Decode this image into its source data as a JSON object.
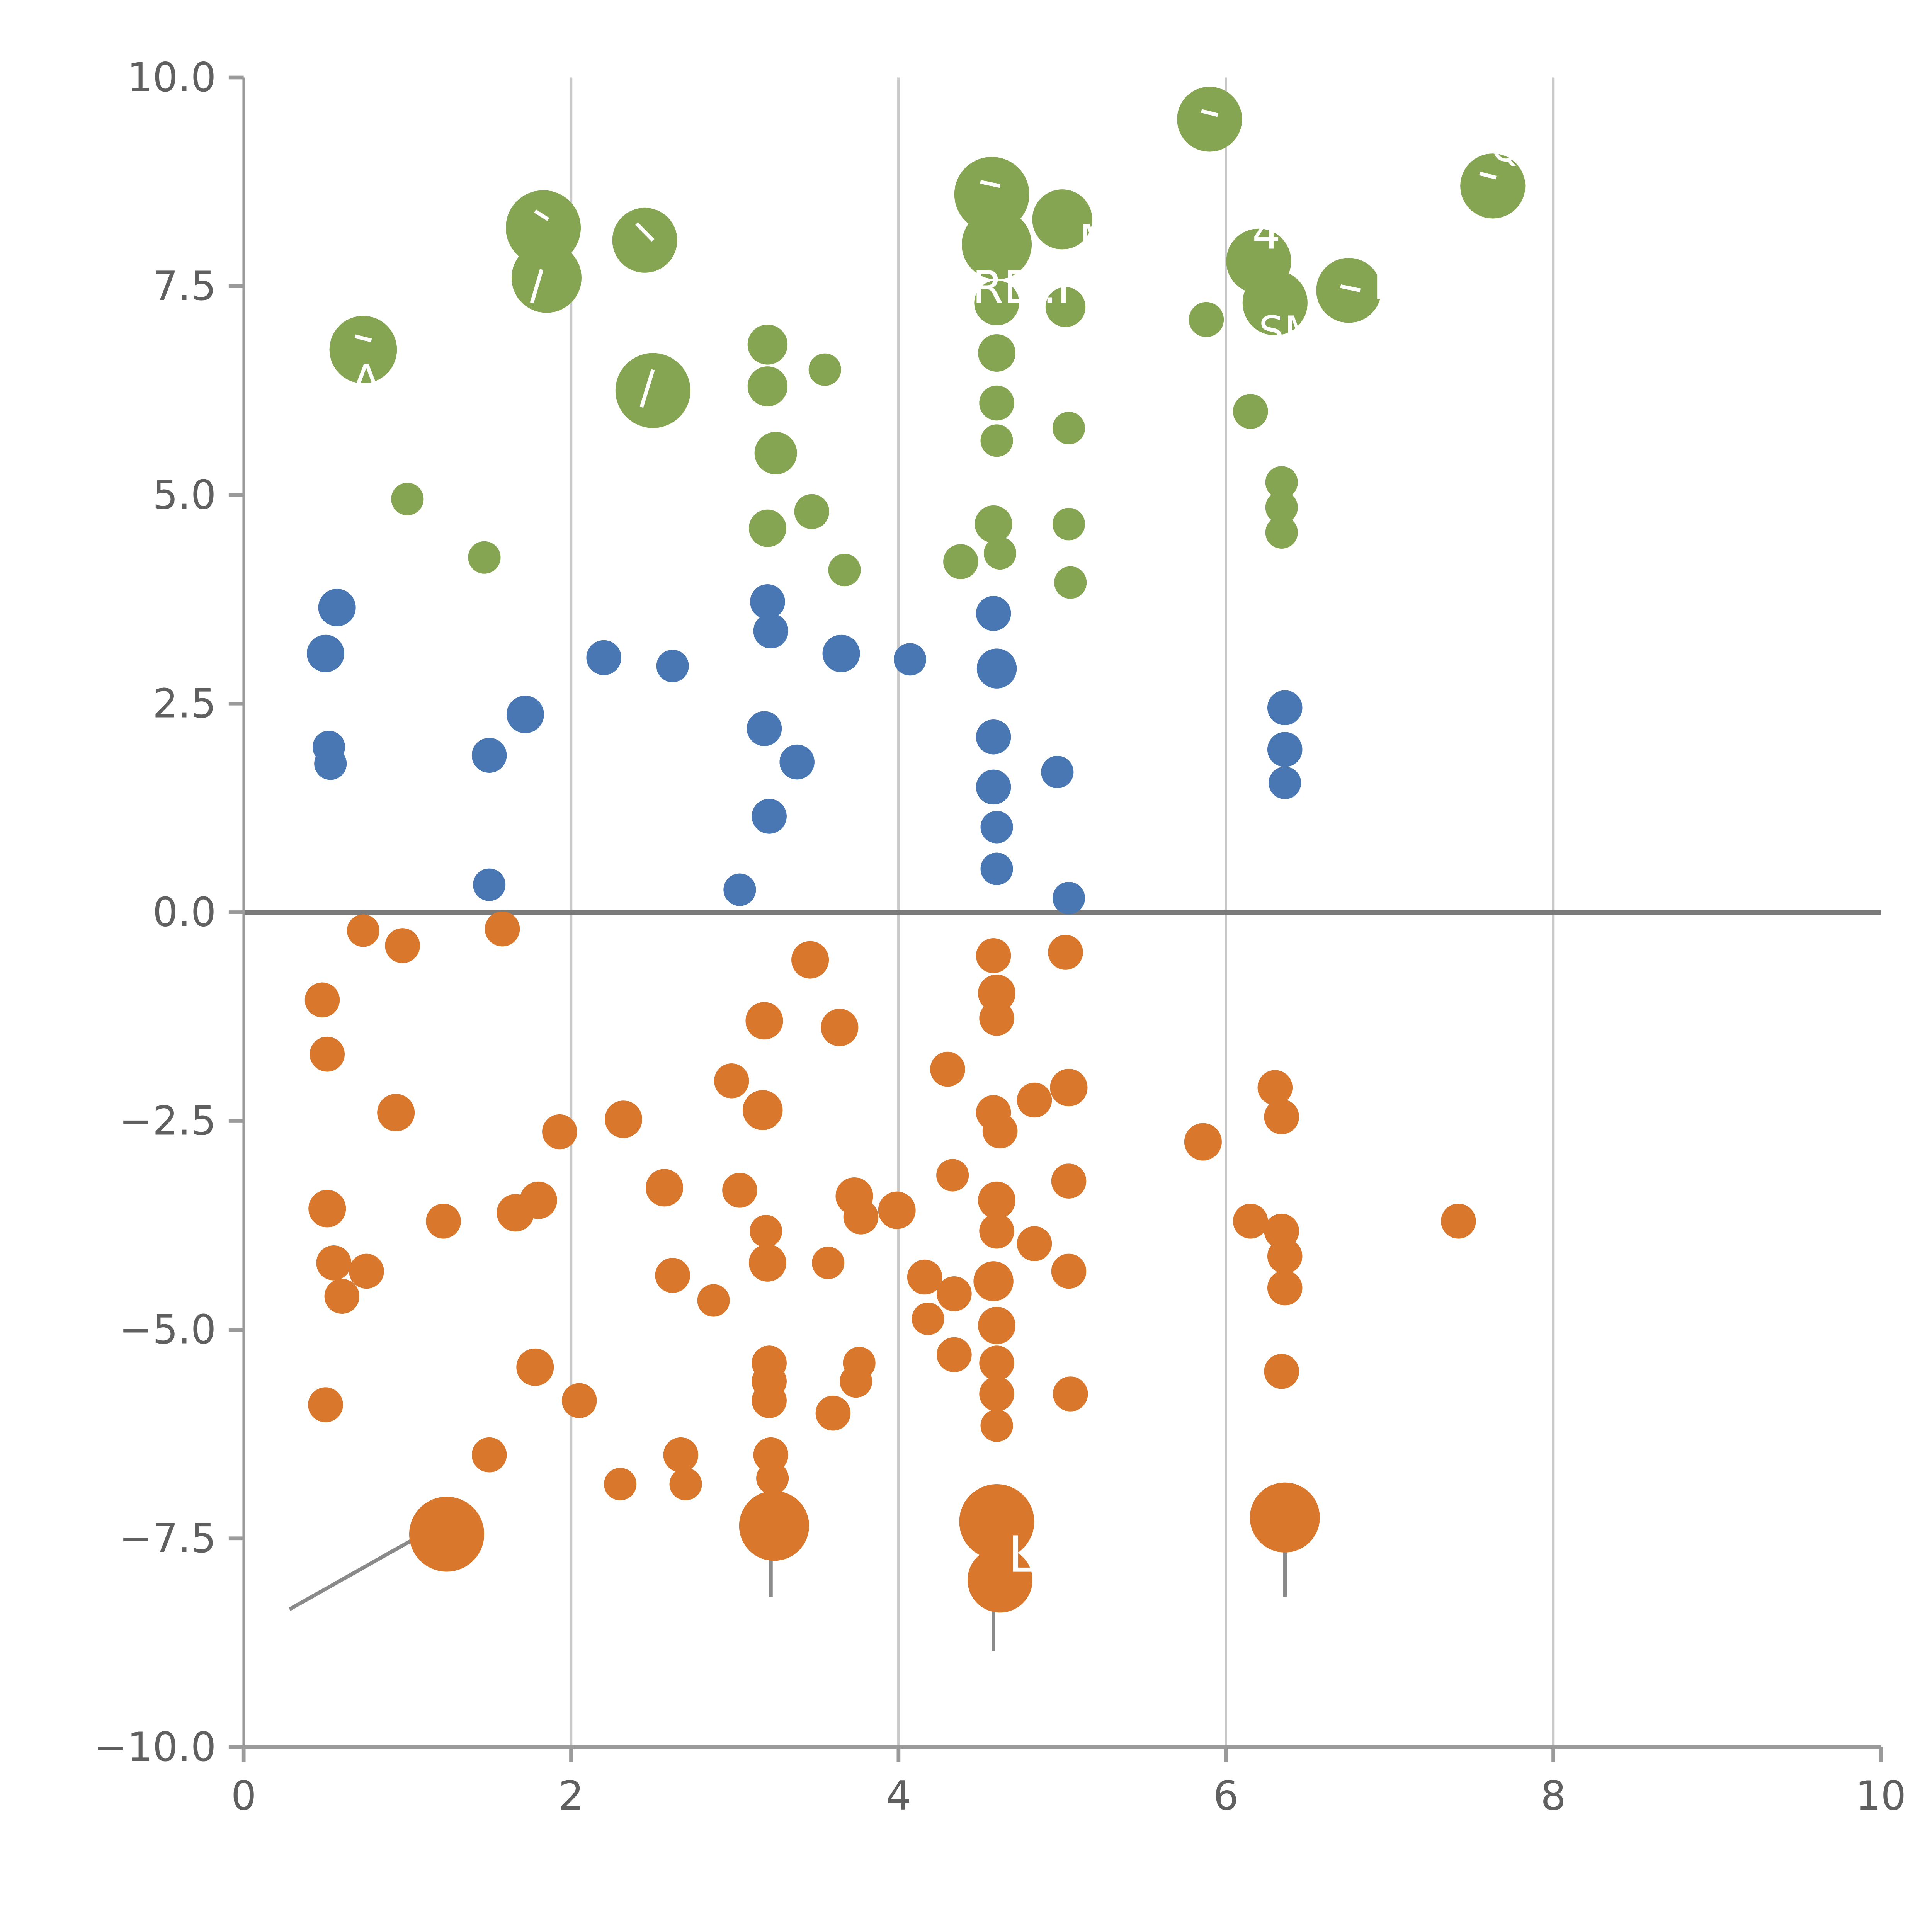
{
  "chart_data": {
    "type": "scatter",
    "title": "",
    "xlabel": "",
    "ylabel": "",
    "xlim": [
      0,
      10
    ],
    "ylim": [
      -10,
      10
    ],
    "xtick_values": [
      0,
      2,
      4,
      6,
      8,
      10
    ],
    "xtick_labels": [
      "0",
      "2",
      "4",
      "6",
      "8",
      "10"
    ],
    "ytick_values": [
      -10,
      -7.5,
      -5,
      -2.5,
      0,
      2.5,
      5,
      7.5,
      10
    ],
    "ytick_labels": [
      "−10.0",
      "−7.5",
      "−5.0",
      "−2.5",
      "0.0",
      "2.5",
      "5.0",
      "7.5",
      "10.0"
    ],
    "grid_x": [
      2,
      4,
      6,
      8
    ],
    "zero_line_y": 0,
    "grid_on": true,
    "legend": "none",
    "colors": {
      "green": "#85a553",
      "blue": "#4877b4",
      "orange": "#d9782d",
      "grid": "#c9c9c9",
      "zero_line": "#7a7a7a",
      "axis": "#9a9a9a",
      "tick_label": "#606060",
      "leader": "#8a8a8a",
      "annotation": "#ffffff"
    },
    "series": [
      {
        "name": "group-green",
        "color_key": "green",
        "points": [
          [
            0.73,
            6.74,
            27
          ],
          [
            1.0,
            4.95,
            13
          ],
          [
            1.47,
            4.25,
            13
          ],
          [
            1.83,
            8.2,
            30
          ],
          [
            1.85,
            7.6,
            28
          ],
          [
            2.45,
            8.05,
            26
          ],
          [
            2.5,
            6.25,
            30
          ],
          [
            3.2,
            6.8,
            16
          ],
          [
            3.2,
            6.3,
            16
          ],
          [
            3.25,
            5.5,
            17
          ],
          [
            3.2,
            4.6,
            15
          ],
          [
            3.47,
            4.8,
            14
          ],
          [
            3.55,
            6.5,
            13
          ],
          [
            3.67,
            4.1,
            13
          ],
          [
            4.38,
            4.2,
            14
          ],
          [
            4.57,
            8.6,
            30
          ],
          [
            4.6,
            8.0,
            28
          ],
          [
            4.6,
            7.3,
            18
          ],
          [
            4.6,
            6.7,
            15
          ],
          [
            4.6,
            6.1,
            14
          ],
          [
            4.6,
            5.65,
            13
          ],
          [
            4.58,
            4.65,
            15
          ],
          [
            4.62,
            4.3,
            13
          ],
          [
            5.0,
            8.3,
            24
          ],
          [
            5.02,
            7.25,
            16
          ],
          [
            5.04,
            5.8,
            13
          ],
          [
            5.04,
            4.65,
            13
          ],
          [
            5.05,
            3.95,
            13
          ],
          [
            5.9,
            9.5,
            26
          ],
          [
            5.88,
            7.1,
            14
          ],
          [
            6.2,
            7.8,
            26
          ],
          [
            6.3,
            7.3,
            26
          ],
          [
            6.15,
            6.0,
            14
          ],
          [
            6.34,
            5.15,
            13
          ],
          [
            6.34,
            4.85,
            13
          ],
          [
            6.34,
            4.55,
            13
          ],
          [
            6.75,
            7.45,
            26
          ],
          [
            7.63,
            8.7,
            26
          ]
        ]
      },
      {
        "name": "group-blue",
        "color_key": "blue",
        "points": [
          [
            0.57,
            3.65,
            15
          ],
          [
            0.5,
            3.1,
            15
          ],
          [
            0.52,
            1.98,
            13
          ],
          [
            0.53,
            1.78,
            13
          ],
          [
            1.5,
            1.88,
            14
          ],
          [
            1.72,
            2.37,
            15
          ],
          [
            1.5,
            0.33,
            13
          ],
          [
            2.2,
            3.05,
            14
          ],
          [
            2.62,
            2.95,
            13
          ],
          [
            3.03,
            0.27,
            13
          ],
          [
            3.18,
            2.2,
            14
          ],
          [
            3.2,
            3.72,
            14
          ],
          [
            3.22,
            3.37,
            14
          ],
          [
            3.38,
            1.8,
            14
          ],
          [
            3.21,
            1.15,
            14
          ],
          [
            3.65,
            3.1,
            15
          ],
          [
            4.07,
            3.03,
            13
          ],
          [
            4.58,
            3.58,
            14
          ],
          [
            4.6,
            2.92,
            16
          ],
          [
            4.58,
            2.1,
            14
          ],
          [
            4.58,
            1.5,
            14
          ],
          [
            4.6,
            1.02,
            13
          ],
          [
            4.6,
            0.52,
            13
          ],
          [
            4.97,
            1.68,
            13
          ],
          [
            5.04,
            0.17,
            13
          ],
          [
            6.36,
            2.45,
            14
          ],
          [
            6.36,
            1.95,
            14
          ],
          [
            6.36,
            1.55,
            13
          ]
        ]
      },
      {
        "name": "group-orange",
        "color_key": "orange",
        "points": [
          [
            0.73,
            -0.22,
            13
          ],
          [
            0.97,
            -0.4,
            14
          ],
          [
            0.48,
            -1.05,
            14
          ],
          [
            0.51,
            -1.7,
            14
          ],
          [
            0.51,
            -3.55,
            15
          ],
          [
            0.55,
            -4.2,
            14
          ],
          [
            0.6,
            -4.6,
            14
          ],
          [
            0.75,
            -4.3,
            14
          ],
          [
            0.93,
            -2.4,
            15
          ],
          [
            0.5,
            -5.9,
            14
          ],
          [
            1.22,
            -3.7,
            14
          ],
          [
            1.24,
            -7.45,
            30
          ],
          [
            1.5,
            -6.5,
            14
          ],
          [
            1.58,
            -0.2,
            14
          ],
          [
            1.66,
            -3.6,
            15
          ],
          [
            1.8,
            -3.45,
            15
          ],
          [
            1.78,
            -5.45,
            15
          ],
          [
            1.93,
            -2.63,
            14
          ],
          [
            2.05,
            -5.85,
            14
          ],
          [
            2.32,
            -2.48,
            15
          ],
          [
            2.3,
            -6.85,
            13
          ],
          [
            2.57,
            -3.3,
            15
          ],
          [
            2.62,
            -4.35,
            14
          ],
          [
            2.67,
            -6.5,
            14
          ],
          [
            2.7,
            -6.85,
            13
          ],
          [
            2.87,
            -4.65,
            13
          ],
          [
            2.98,
            -2.02,
            14
          ],
          [
            3.03,
            -3.33,
            14
          ],
          [
            3.18,
            -1.3,
            15
          ],
          [
            3.17,
            -2.37,
            16
          ],
          [
            3.19,
            -3.82,
            13
          ],
          [
            3.2,
            -4.2,
            15
          ],
          [
            3.21,
            -5.4,
            14
          ],
          [
            3.21,
            -5.62,
            14
          ],
          [
            3.21,
            -5.85,
            14
          ],
          [
            3.22,
            -6.5,
            14
          ],
          [
            3.23,
            -6.78,
            13
          ],
          [
            3.24,
            -7.35,
            28
          ],
          [
            3.46,
            -0.57,
            15
          ],
          [
            3.57,
            -4.2,
            13
          ],
          [
            3.6,
            -6.0,
            14
          ],
          [
            3.64,
            -1.38,
            15
          ],
          [
            3.73,
            -3.4,
            15
          ],
          [
            3.77,
            -3.65,
            14
          ],
          [
            3.76,
            -5.4,
            13
          ],
          [
            3.74,
            -5.62,
            13
          ],
          [
            3.99,
            -3.57,
            15
          ],
          [
            4.16,
            -4.37,
            14
          ],
          [
            4.18,
            -4.87,
            13
          ],
          [
            4.3,
            -1.88,
            14
          ],
          [
            4.33,
            -3.15,
            13
          ],
          [
            4.34,
            -4.57,
            14
          ],
          [
            4.34,
            -5.3,
            14
          ],
          [
            4.58,
            -0.52,
            14
          ],
          [
            4.6,
            -0.97,
            15
          ],
          [
            4.6,
            -1.27,
            14
          ],
          [
            4.58,
            -2.4,
            14
          ],
          [
            4.62,
            -2.62,
            14
          ],
          [
            4.6,
            -3.45,
            15
          ],
          [
            4.6,
            -3.82,
            14
          ],
          [
            4.58,
            -4.42,
            16
          ],
          [
            4.6,
            -4.95,
            15
          ],
          [
            4.6,
            -5.4,
            14
          ],
          [
            4.6,
            -5.77,
            14
          ],
          [
            4.6,
            -6.15,
            13
          ],
          [
            4.6,
            -7.3,
            30
          ],
          [
            4.62,
            -8.0,
            26
          ],
          [
            4.83,
            -2.25,
            14
          ],
          [
            4.83,
            -3.97,
            14
          ],
          [
            5.02,
            -0.48,
            14
          ],
          [
            5.04,
            -2.1,
            15
          ],
          [
            5.04,
            -3.22,
            14
          ],
          [
            5.04,
            -4.3,
            14
          ],
          [
            5.05,
            -5.77,
            14
          ],
          [
            5.86,
            -2.75,
            15
          ],
          [
            6.15,
            -3.7,
            14
          ],
          [
            6.3,
            -2.1,
            14
          ],
          [
            6.34,
            -2.45,
            14
          ],
          [
            6.34,
            -3.82,
            14
          ],
          [
            6.36,
            -4.12,
            14
          ],
          [
            6.36,
            -4.5,
            14
          ],
          [
            6.34,
            -5.5,
            14
          ],
          [
            6.36,
            -7.25,
            28
          ],
          [
            7.42,
            -3.7,
            14
          ]
        ]
      }
    ],
    "leader_lines": [
      [
        0.28,
        -8.35,
        1.12,
        -7.42
      ],
      [
        3.22,
        -7.62,
        3.22,
        -8.2
      ],
      [
        4.58,
        -7.7,
        4.58,
        -8.85
      ],
      [
        6.36,
        -7.58,
        6.36,
        -8.2
      ]
    ],
    "white_ticks": [
      [
        5.85,
        9.6,
        5.95,
        9.55
      ],
      [
        4.5,
        8.75,
        4.62,
        8.7
      ],
      [
        2.4,
        8.25,
        2.5,
        8.05
      ],
      [
        1.78,
        8.4,
        1.86,
        8.3
      ],
      [
        1.82,
        7.7,
        1.76,
        7.3
      ],
      [
        2.5,
        6.5,
        2.43,
        6.05
      ],
      [
        6.7,
        7.5,
        6.82,
        7.45
      ],
      [
        7.55,
        8.85,
        7.65,
        8.8
      ],
      [
        0.68,
        6.9,
        0.78,
        6.85
      ]
    ],
    "annotations": [
      {
        "text": "A",
        "x": 0.66,
        "y": 6.2,
        "size": 34
      },
      {
        "text": "M",
        "x": 5.1,
        "y": 7.85,
        "size": 36
      },
      {
        "text": "RE",
        "x": 4.45,
        "y": 7.3,
        "size": 36
      },
      {
        "text": ".F",
        "x": 4.88,
        "y": 7.3,
        "size": 36
      },
      {
        "text": "4",
        "x": 6.16,
        "y": 7.95,
        "size": 36
      },
      {
        "text": "SM",
        "x": 6.2,
        "y": 6.8,
        "size": 32
      },
      {
        "text": "E",
        "x": 6.9,
        "y": 7.35,
        "size": 32
      },
      {
        "text": "Q7",
        "x": 7.62,
        "y": 9.0,
        "size": 30
      },
      {
        "text": "L",
        "x": 4.67,
        "y": -7.9,
        "size": 40
      }
    ]
  }
}
